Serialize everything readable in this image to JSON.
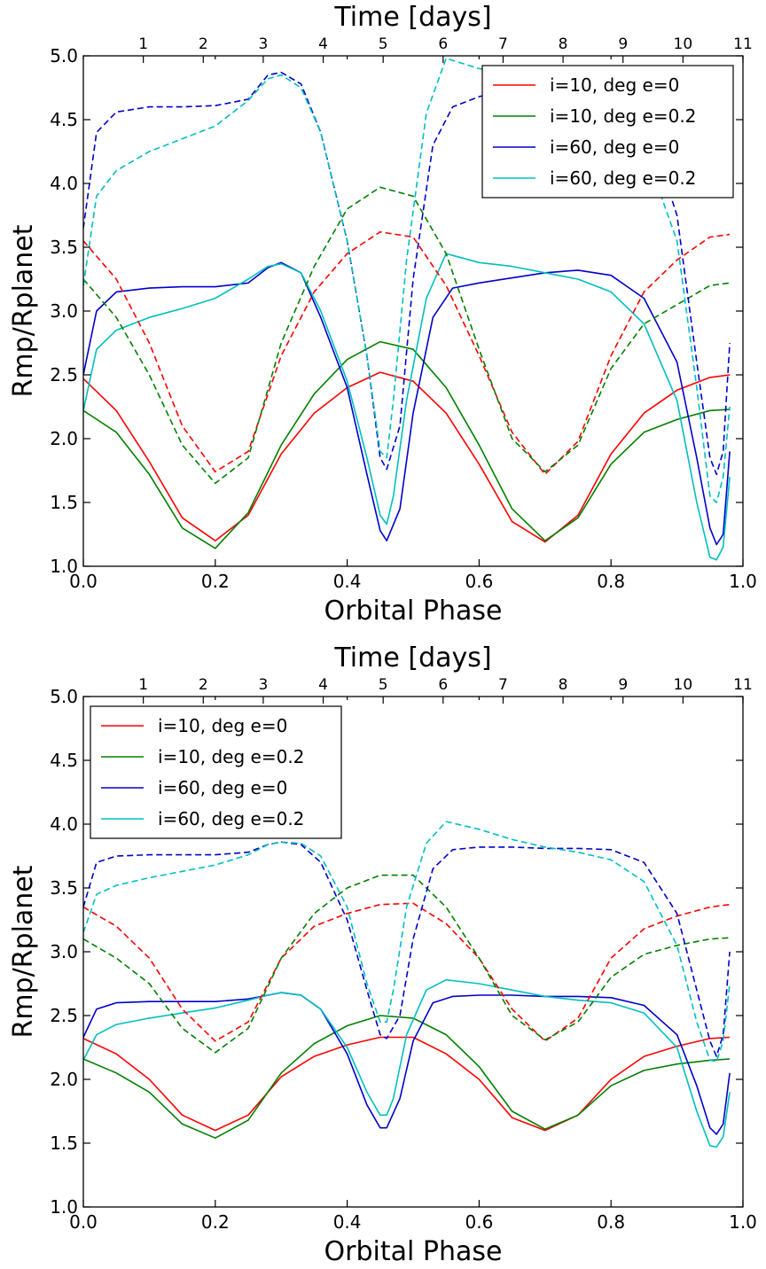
{
  "chart_data": [
    {
      "type": "line",
      "xlabel": "Orbital Phase",
      "ylabel": "Rmp/Rplanet",
      "top_xlabel": "Time [days]",
      "xlim": [
        0.0,
        1.0
      ],
      "ylim": [
        1.0,
        5.0
      ],
      "x_ticks": [
        "0.0",
        "0.2",
        "0.4",
        "0.6",
        "0.8",
        "1.0"
      ],
      "y_ticks": [
        "1.0",
        "1.5",
        "2.0",
        "2.5",
        "3.0",
        "3.5",
        "4.0",
        "4.5",
        "5.0"
      ],
      "top_ticks": [
        "1",
        "2",
        "3",
        "4",
        "5",
        "6",
        "7",
        "8",
        "9",
        "10",
        "11"
      ],
      "top_tick_period_days": 11.0,
      "legend_position": "upper-right",
      "grid": false,
      "series": [
        {
          "name": "i=10, deg e=0",
          "color": "#ff0000",
          "style": "solid",
          "x": [
            0,
            0.05,
            0.1,
            0.15,
            0.2,
            0.25,
            0.3,
            0.35,
            0.4,
            0.45,
            0.5,
            0.55,
            0.6,
            0.65,
            0.7,
            0.75,
            0.8,
            0.85,
            0.9,
            0.95,
            0.98
          ],
          "y": [
            2.47,
            2.22,
            1.82,
            1.38,
            1.2,
            1.4,
            1.88,
            2.2,
            2.4,
            2.52,
            2.45,
            2.2,
            1.8,
            1.35,
            1.19,
            1.4,
            1.88,
            2.2,
            2.38,
            2.48,
            2.5
          ]
        },
        {
          "name": "i=10, deg e=0.2",
          "color": "#008000",
          "style": "solid",
          "x": [
            0,
            0.05,
            0.1,
            0.15,
            0.2,
            0.25,
            0.3,
            0.35,
            0.4,
            0.45,
            0.5,
            0.55,
            0.6,
            0.65,
            0.7,
            0.75,
            0.8,
            0.85,
            0.9,
            0.95,
            0.98
          ],
          "y": [
            2.22,
            2.05,
            1.72,
            1.3,
            1.14,
            1.42,
            1.95,
            2.35,
            2.62,
            2.76,
            2.7,
            2.4,
            1.95,
            1.45,
            1.2,
            1.38,
            1.8,
            2.05,
            2.15,
            2.22,
            2.23
          ]
        },
        {
          "name": "i=60, deg e=0",
          "color": "#0000cc",
          "style": "solid",
          "x": [
            0,
            0.02,
            0.05,
            0.1,
            0.15,
            0.2,
            0.25,
            0.28,
            0.3,
            0.33,
            0.36,
            0.4,
            0.43,
            0.45,
            0.46,
            0.48,
            0.5,
            0.53,
            0.56,
            0.6,
            0.65,
            0.7,
            0.75,
            0.8,
            0.85,
            0.9,
            0.93,
            0.95,
            0.96,
            0.97,
            0.98
          ],
          "y": [
            2.5,
            3.0,
            3.15,
            3.18,
            3.19,
            3.19,
            3.22,
            3.34,
            3.38,
            3.3,
            2.95,
            2.4,
            1.72,
            1.28,
            1.2,
            1.45,
            2.2,
            2.95,
            3.18,
            3.22,
            3.26,
            3.3,
            3.32,
            3.28,
            3.1,
            2.6,
            1.85,
            1.3,
            1.17,
            1.25,
            1.9
          ]
        },
        {
          "name": "i=60, deg e=0.2",
          "color": "#00bfbf",
          "style": "solid",
          "x": [
            0,
            0.02,
            0.05,
            0.1,
            0.15,
            0.2,
            0.25,
            0.28,
            0.3,
            0.33,
            0.36,
            0.4,
            0.43,
            0.45,
            0.46,
            0.47,
            0.49,
            0.52,
            0.55,
            0.6,
            0.65,
            0.7,
            0.75,
            0.8,
            0.85,
            0.9,
            0.93,
            0.95,
            0.96,
            0.97,
            0.98
          ],
          "y": [
            2.22,
            2.7,
            2.85,
            2.95,
            3.02,
            3.1,
            3.25,
            3.35,
            3.37,
            3.3,
            3.0,
            2.45,
            1.85,
            1.4,
            1.33,
            1.55,
            2.3,
            3.1,
            3.45,
            3.38,
            3.35,
            3.3,
            3.25,
            3.15,
            2.9,
            2.3,
            1.5,
            1.07,
            1.05,
            1.15,
            1.7
          ]
        },
        {
          "name": "",
          "color": "#ff0000",
          "style": "dashed",
          "x": [
            0,
            0.05,
            0.1,
            0.15,
            0.2,
            0.25,
            0.3,
            0.35,
            0.4,
            0.45,
            0.5,
            0.55,
            0.6,
            0.65,
            0.7,
            0.75,
            0.8,
            0.85,
            0.9,
            0.95,
            0.98
          ],
          "y": [
            3.55,
            3.25,
            2.75,
            2.1,
            1.74,
            1.9,
            2.65,
            3.15,
            3.45,
            3.62,
            3.58,
            3.2,
            2.65,
            2.05,
            1.72,
            1.98,
            2.65,
            3.15,
            3.4,
            3.58,
            3.6
          ]
        },
        {
          "name": "",
          "color": "#008000",
          "style": "dashed",
          "x": [
            0,
            0.05,
            0.1,
            0.15,
            0.2,
            0.25,
            0.3,
            0.35,
            0.4,
            0.45,
            0.5,
            0.55,
            0.6,
            0.65,
            0.7,
            0.75,
            0.8,
            0.85,
            0.9,
            0.95,
            0.98
          ],
          "y": [
            3.25,
            2.95,
            2.5,
            1.95,
            1.65,
            1.85,
            2.75,
            3.35,
            3.8,
            3.97,
            3.9,
            3.45,
            2.7,
            2.0,
            1.74,
            1.95,
            2.55,
            2.9,
            3.05,
            3.2,
            3.22
          ]
        },
        {
          "name": "",
          "color": "#0000cc",
          "style": "dashed",
          "x": [
            0,
            0.02,
            0.05,
            0.1,
            0.15,
            0.2,
            0.25,
            0.28,
            0.3,
            0.33,
            0.36,
            0.4,
            0.43,
            0.45,
            0.46,
            0.48,
            0.5,
            0.53,
            0.56,
            0.6,
            0.65,
            0.7,
            0.75,
            0.8,
            0.85,
            0.9,
            0.93,
            0.95,
            0.96,
            0.97,
            0.98
          ],
          "y": [
            3.65,
            4.4,
            4.56,
            4.6,
            4.6,
            4.61,
            4.66,
            4.85,
            4.87,
            4.78,
            4.4,
            3.55,
            2.65,
            1.85,
            1.76,
            2.1,
            3.25,
            4.3,
            4.6,
            4.68,
            4.75,
            4.8,
            4.83,
            4.8,
            4.55,
            3.75,
            2.6,
            1.85,
            1.72,
            1.9,
            2.75
          ]
        },
        {
          "name": "",
          "color": "#00bfbf",
          "style": "dashed",
          "x": [
            0,
            0.02,
            0.05,
            0.1,
            0.15,
            0.2,
            0.25,
            0.28,
            0.3,
            0.33,
            0.36,
            0.4,
            0.43,
            0.45,
            0.46,
            0.47,
            0.49,
            0.52,
            0.55,
            0.6,
            0.65,
            0.7,
            0.75,
            0.8,
            0.85,
            0.9,
            0.93,
            0.95,
            0.96,
            0.97,
            0.98
          ],
          "y": [
            3.2,
            3.9,
            4.1,
            4.25,
            4.35,
            4.45,
            4.65,
            4.82,
            4.85,
            4.75,
            4.4,
            3.55,
            2.65,
            1.9,
            1.85,
            2.3,
            3.4,
            4.55,
            4.98,
            4.9,
            4.86,
            4.83,
            4.78,
            4.6,
            4.28,
            3.55,
            2.4,
            1.55,
            1.5,
            1.7,
            2.25
          ]
        }
      ]
    },
    {
      "type": "line",
      "xlabel": "Orbital Phase",
      "ylabel": "Rmp/Rplanet",
      "top_xlabel": "Time [days]",
      "xlim": [
        0.0,
        1.0
      ],
      "ylim": [
        1.0,
        5.0
      ],
      "x_ticks": [
        "0.0",
        "0.2",
        "0.4",
        "0.6",
        "0.8",
        "1.0"
      ],
      "y_ticks": [
        "1.0",
        "1.5",
        "2.0",
        "2.5",
        "3.0",
        "3.5",
        "4.0",
        "4.5",
        "5.0"
      ],
      "top_ticks": [
        "1",
        "2",
        "3",
        "4",
        "5",
        "6",
        "7",
        "8",
        "9",
        "10",
        "11"
      ],
      "top_tick_period_days": 11.0,
      "legend_position": "upper-left",
      "grid": false,
      "series": [
        {
          "name": "i=10, deg e=0",
          "color": "#ff0000",
          "style": "solid",
          "x": [
            0,
            0.05,
            0.1,
            0.15,
            0.2,
            0.25,
            0.3,
            0.35,
            0.4,
            0.45,
            0.5,
            0.55,
            0.6,
            0.65,
            0.7,
            0.75,
            0.8,
            0.85,
            0.9,
            0.95,
            0.98
          ],
          "y": [
            2.32,
            2.2,
            2.0,
            1.72,
            1.6,
            1.72,
            2.02,
            2.18,
            2.27,
            2.33,
            2.33,
            2.2,
            2.0,
            1.7,
            1.6,
            1.72,
            2.0,
            2.18,
            2.26,
            2.32,
            2.33
          ]
        },
        {
          "name": "i=10, deg e=0.2",
          "color": "#008000",
          "style": "solid",
          "x": [
            0,
            0.05,
            0.1,
            0.15,
            0.2,
            0.25,
            0.3,
            0.35,
            0.4,
            0.45,
            0.5,
            0.55,
            0.6,
            0.65,
            0.7,
            0.75,
            0.8,
            0.85,
            0.9,
            0.95,
            0.98
          ],
          "y": [
            2.16,
            2.05,
            1.9,
            1.65,
            1.54,
            1.68,
            2.05,
            2.28,
            2.42,
            2.5,
            2.48,
            2.35,
            2.1,
            1.75,
            1.61,
            1.72,
            1.95,
            2.07,
            2.12,
            2.15,
            2.16
          ]
        },
        {
          "name": "i=60, deg e=0",
          "color": "#0000cc",
          "style": "solid",
          "x": [
            0,
            0.02,
            0.05,
            0.1,
            0.15,
            0.2,
            0.25,
            0.28,
            0.3,
            0.33,
            0.36,
            0.4,
            0.43,
            0.45,
            0.46,
            0.48,
            0.5,
            0.53,
            0.56,
            0.6,
            0.65,
            0.7,
            0.75,
            0.8,
            0.85,
            0.9,
            0.93,
            0.95,
            0.96,
            0.97,
            0.98
          ],
          "y": [
            2.33,
            2.55,
            2.6,
            2.61,
            2.61,
            2.61,
            2.63,
            2.66,
            2.68,
            2.66,
            2.55,
            2.2,
            1.8,
            1.62,
            1.62,
            1.85,
            2.3,
            2.6,
            2.65,
            2.66,
            2.66,
            2.65,
            2.65,
            2.64,
            2.58,
            2.35,
            1.95,
            1.62,
            1.57,
            1.65,
            2.05
          ]
        },
        {
          "name": "i=60, deg e=0.2",
          "color": "#00bfbf",
          "style": "solid",
          "x": [
            0,
            0.02,
            0.05,
            0.1,
            0.15,
            0.2,
            0.25,
            0.28,
            0.3,
            0.33,
            0.36,
            0.4,
            0.43,
            0.45,
            0.46,
            0.47,
            0.49,
            0.52,
            0.55,
            0.6,
            0.65,
            0.7,
            0.75,
            0.8,
            0.85,
            0.9,
            0.93,
            0.95,
            0.96,
            0.97,
            0.98
          ],
          "y": [
            2.15,
            2.35,
            2.43,
            2.48,
            2.52,
            2.56,
            2.62,
            2.66,
            2.68,
            2.66,
            2.55,
            2.25,
            1.9,
            1.72,
            1.72,
            1.85,
            2.35,
            2.7,
            2.78,
            2.75,
            2.7,
            2.65,
            2.62,
            2.6,
            2.52,
            2.25,
            1.75,
            1.48,
            1.47,
            1.55,
            1.9
          ]
        },
        {
          "name": "",
          "color": "#ff0000",
          "style": "dashed",
          "x": [
            0,
            0.05,
            0.1,
            0.15,
            0.2,
            0.25,
            0.3,
            0.35,
            0.4,
            0.45,
            0.5,
            0.55,
            0.6,
            0.65,
            0.7,
            0.75,
            0.8,
            0.85,
            0.9,
            0.95,
            0.98
          ],
          "y": [
            3.35,
            3.2,
            2.95,
            2.55,
            2.3,
            2.45,
            2.95,
            3.2,
            3.3,
            3.37,
            3.38,
            3.22,
            2.95,
            2.55,
            2.3,
            2.48,
            2.95,
            3.18,
            3.28,
            3.35,
            3.37
          ]
        },
        {
          "name": "",
          "color": "#008000",
          "style": "dashed",
          "x": [
            0,
            0.05,
            0.1,
            0.15,
            0.2,
            0.25,
            0.3,
            0.35,
            0.4,
            0.45,
            0.5,
            0.55,
            0.6,
            0.65,
            0.7,
            0.75,
            0.8,
            0.85,
            0.9,
            0.95,
            0.98
          ],
          "y": [
            3.1,
            2.95,
            2.75,
            2.4,
            2.21,
            2.4,
            2.95,
            3.3,
            3.5,
            3.6,
            3.6,
            3.35,
            2.95,
            2.5,
            2.31,
            2.45,
            2.8,
            2.98,
            3.05,
            3.1,
            3.11
          ]
        },
        {
          "name": "",
          "color": "#0000cc",
          "style": "dashed",
          "x": [
            0,
            0.02,
            0.05,
            0.1,
            0.15,
            0.2,
            0.25,
            0.28,
            0.3,
            0.33,
            0.36,
            0.4,
            0.43,
            0.45,
            0.46,
            0.48,
            0.5,
            0.53,
            0.56,
            0.6,
            0.65,
            0.7,
            0.75,
            0.8,
            0.85,
            0.9,
            0.93,
            0.95,
            0.96,
            0.97,
            0.98
          ],
          "y": [
            3.35,
            3.7,
            3.75,
            3.76,
            3.76,
            3.76,
            3.78,
            3.84,
            3.86,
            3.84,
            3.7,
            3.25,
            2.7,
            2.35,
            2.32,
            2.5,
            3.1,
            3.65,
            3.8,
            3.82,
            3.82,
            3.81,
            3.81,
            3.8,
            3.7,
            3.3,
            2.7,
            2.3,
            2.18,
            2.35,
            3.0
          ]
        },
        {
          "name": "",
          "color": "#00bfbf",
          "style": "dashed",
          "x": [
            0,
            0.02,
            0.05,
            0.1,
            0.15,
            0.2,
            0.25,
            0.28,
            0.3,
            0.33,
            0.36,
            0.4,
            0.43,
            0.45,
            0.46,
            0.47,
            0.49,
            0.52,
            0.55,
            0.6,
            0.65,
            0.7,
            0.75,
            0.8,
            0.85,
            0.9,
            0.93,
            0.95,
            0.96,
            0.97,
            0.98
          ],
          "y": [
            3.15,
            3.45,
            3.52,
            3.58,
            3.63,
            3.68,
            3.76,
            3.84,
            3.86,
            3.85,
            3.75,
            3.35,
            2.75,
            2.45,
            2.45,
            2.7,
            3.35,
            3.85,
            4.02,
            3.96,
            3.88,
            3.82,
            3.78,
            3.72,
            3.55,
            3.05,
            2.45,
            2.15,
            2.14,
            2.3,
            2.75
          ]
        }
      ]
    }
  ]
}
